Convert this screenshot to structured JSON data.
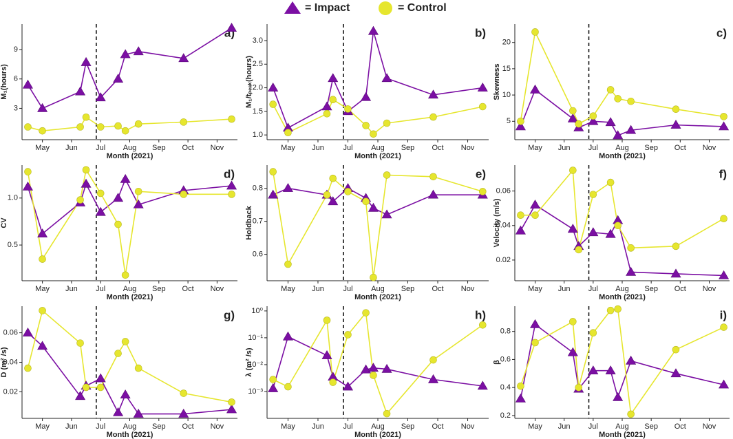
{
  "chart_data": [
    {
      "type": "line",
      "panel": "a)",
      "ylabel": "M₁(hours)",
      "xlabel": "Month (2021)",
      "x": [
        4.5,
        5.0,
        6.3,
        6.5,
        7.0,
        7.6,
        7.85,
        8.3,
        9.85,
        11.5
      ],
      "xlim": [
        4.3,
        11.7
      ],
      "xticks": [
        {
          "value": 5,
          "label": "May"
        },
        {
          "value": 6,
          "label": "Jun"
        },
        {
          "value": 7,
          "label": "Jul"
        },
        {
          "value": 8,
          "label": "Aug"
        },
        {
          "value": 9,
          "label": "Sep"
        },
        {
          "value": 10,
          "label": "Oct"
        },
        {
          "value": 11,
          "label": "Nov"
        }
      ],
      "vline": 6.85,
      "ylim": [
        -0.2,
        11.6
      ],
      "yticks": [
        3,
        6,
        9
      ],
      "series": [
        {
          "name": "= Impact",
          "color": "#7b0fa3",
          "marker": "triangle",
          "values": [
            5.4,
            3.0,
            4.7,
            7.7,
            4.1,
            6.0,
            8.5,
            8.8,
            8.1,
            11.2
          ]
        },
        {
          "name": "= Control",
          "color": "#e6e62e",
          "marker": "circle",
          "values": [
            1.1,
            0.7,
            1.1,
            2.1,
            1.1,
            1.2,
            0.7,
            1.4,
            1.6,
            1.9
          ]
        }
      ]
    },
    {
      "type": "line",
      "panel": "b)",
      "ylabel": "M₁/tₚₑₐₖ(hours)",
      "xlabel": "Month (2021)",
      "x": [
        4.5,
        5.0,
        6.3,
        6.5,
        7.0,
        7.6,
        7.85,
        8.3,
        9.85,
        11.5
      ],
      "xlim": [
        4.3,
        11.7
      ],
      "xticks": [
        {
          "value": 5,
          "label": "May"
        },
        {
          "value": 6,
          "label": "Jun"
        },
        {
          "value": 7,
          "label": "Jul"
        },
        {
          "value": 8,
          "label": "Aug"
        },
        {
          "value": 9,
          "label": "Sep"
        },
        {
          "value": 10,
          "label": "Oct"
        },
        {
          "value": 11,
          "label": "Nov"
        }
      ],
      "vline": 6.85,
      "ylim": [
        0.9,
        3.35
      ],
      "yticks": [
        {
          "value": 1,
          "label": "1.0"
        },
        {
          "value": 1.5,
          "label": "1.5"
        },
        {
          "value": 2,
          "label": "2.0"
        },
        {
          "value": 2.5,
          "label": "2.5"
        },
        {
          "value": 3,
          "label": "3.0"
        }
      ],
      "series": [
        {
          "name": "= Impact",
          "color": "#7b0fa3",
          "marker": "triangle",
          "values": [
            2.0,
            1.15,
            1.6,
            2.2,
            1.5,
            1.8,
            3.2,
            2.2,
            1.85,
            2.0
          ]
        },
        {
          "name": "= Control",
          "color": "#e6e62e",
          "marker": "circle",
          "values": [
            1.65,
            1.05,
            1.45,
            1.75,
            1.55,
            1.2,
            1.02,
            1.25,
            1.38,
            1.6
          ]
        }
      ]
    },
    {
      "type": "line",
      "panel": "c)",
      "ylabel": "Skewness",
      "xlabel": "Month (2021)",
      "x": [
        4.5,
        5.0,
        6.3,
        6.5,
        7.0,
        7.6,
        7.85,
        8.3,
        9.85,
        11.5
      ],
      "xlim": [
        4.3,
        11.7
      ],
      "xticks": [
        {
          "value": 5,
          "label": "May"
        },
        {
          "value": 6,
          "label": "Jun"
        },
        {
          "value": 7,
          "label": "Jul"
        },
        {
          "value": 8,
          "label": "Aug"
        },
        {
          "value": 9,
          "label": "Sep"
        },
        {
          "value": 10,
          "label": "Oct"
        },
        {
          "value": 11,
          "label": "Nov"
        }
      ],
      "vline": 6.85,
      "ylim": [
        1.5,
        23.5
      ],
      "yticks": [
        5,
        10,
        15,
        20
      ],
      "series": [
        {
          "name": "= Impact",
          "color": "#7b0fa3",
          "marker": "triangle",
          "values": [
            4,
            11,
            5.5,
            3.8,
            5,
            4.8,
            2.3,
            3.3,
            4.3,
            4
          ]
        },
        {
          "name": "= Control",
          "color": "#e6e62e",
          "marker": "circle",
          "values": [
            5,
            22,
            7,
            4.5,
            6,
            11,
            9.3,
            8.8,
            7.3,
            5.9
          ]
        }
      ]
    },
    {
      "type": "line",
      "panel": "d)",
      "ylabel": "CV",
      "xlabel": "Month (2021)",
      "x": [
        4.5,
        5.0,
        6.3,
        6.5,
        7.0,
        7.6,
        7.85,
        8.3,
        9.85,
        11.5
      ],
      "xlim": [
        4.3,
        11.7
      ],
      "xticks": [
        {
          "value": 5,
          "label": "May"
        },
        {
          "value": 6,
          "label": "Jun"
        },
        {
          "value": 7,
          "label": "Jul"
        },
        {
          "value": 8,
          "label": "Aug"
        },
        {
          "value": 9,
          "label": "Sep"
        },
        {
          "value": 10,
          "label": "Oct"
        },
        {
          "value": 11,
          "label": "Nov"
        }
      ],
      "vline": 6.85,
      "ylim": [
        0.12,
        1.35
      ],
      "yticks": [
        0.5,
        {
          "value": 1,
          "label": "1.0"
        }
      ],
      "series": [
        {
          "name": "= Impact",
          "color": "#7b0fa3",
          "marker": "triangle",
          "values": [
            1.12,
            0.62,
            0.95,
            1.15,
            0.85,
            1.0,
            1.2,
            0.93,
            1.08,
            1.13
          ]
        },
        {
          "name": "= Control",
          "color": "#e6e62e",
          "marker": "circle",
          "values": [
            1.28,
            0.35,
            0.98,
            1.3,
            1.05,
            0.72,
            0.18,
            1.07,
            1.04,
            1.04
          ]
        }
      ]
    },
    {
      "type": "line",
      "panel": "e)",
      "ylabel": "Holdback",
      "xlabel": "Month (2021)",
      "x": [
        4.5,
        5.0,
        6.3,
        6.5,
        7.0,
        7.6,
        7.85,
        8.3,
        9.85,
        11.5
      ],
      "xlim": [
        4.3,
        11.7
      ],
      "xticks": [
        {
          "value": 5,
          "label": "May"
        },
        {
          "value": 6,
          "label": "Jun"
        },
        {
          "value": 7,
          "label": "Jul"
        },
        {
          "value": 8,
          "label": "Aug"
        },
        {
          "value": 9,
          "label": "Sep"
        },
        {
          "value": 10,
          "label": "Oct"
        },
        {
          "value": 11,
          "label": "Nov"
        }
      ],
      "vline": 6.85,
      "ylim": [
        0.52,
        0.87
      ],
      "yticks": [
        0.6,
        0.7,
        0.8
      ],
      "series": [
        {
          "name": "= Impact",
          "color": "#7b0fa3",
          "marker": "triangle",
          "values": [
            0.78,
            0.8,
            0.78,
            0.76,
            0.8,
            0.77,
            0.74,
            0.72,
            0.78,
            0.78
          ]
        },
        {
          "name": "= Control",
          "color": "#e6e62e",
          "marker": "circle",
          "values": [
            0.85,
            0.57,
            0.78,
            0.83,
            0.79,
            0.76,
            0.53,
            0.84,
            0.835,
            0.79
          ]
        }
      ]
    },
    {
      "type": "line",
      "panel": "f)",
      "ylabel": "Velocity (m/s)",
      "xlabel": "Month (2021)",
      "x": [
        4.5,
        5.0,
        6.3,
        6.5,
        7.0,
        7.6,
        7.85,
        8.3,
        9.85,
        11.5
      ],
      "xlim": [
        4.3,
        11.7
      ],
      "xticks": [
        {
          "value": 5,
          "label": "May"
        },
        {
          "value": 6,
          "label": "Jun"
        },
        {
          "value": 7,
          "label": "Jul"
        },
        {
          "value": 8,
          "label": "Aug"
        },
        {
          "value": 9,
          "label": "Sep"
        },
        {
          "value": 10,
          "label": "Oct"
        },
        {
          "value": 11,
          "label": "Nov"
        }
      ],
      "vline": 6.85,
      "ylim": [
        0.008,
        0.075
      ],
      "yticks": [
        0.02,
        0.04,
        0.06
      ],
      "series": [
        {
          "name": "= Impact",
          "color": "#7b0fa3",
          "marker": "triangle",
          "values": [
            0.037,
            0.052,
            0.038,
            0.028,
            0.036,
            0.035,
            0.043,
            0.013,
            0.012,
            0.011
          ]
        },
        {
          "name": "= Control",
          "color": "#e6e62e",
          "marker": "circle",
          "values": [
            0.046,
            0.046,
            0.072,
            0.026,
            0.058,
            0.065,
            0.04,
            0.027,
            0.028,
            0.044
          ]
        }
      ]
    },
    {
      "type": "line",
      "panel": "g)",
      "ylabel": "D (m² /s)",
      "xlabel": "Month (2021)",
      "x": [
        4.5,
        5.0,
        6.3,
        6.5,
        7.0,
        7.6,
        7.85,
        8.3,
        9.85,
        11.5
      ],
      "xlim": [
        4.3,
        11.7
      ],
      "xticks": [
        {
          "value": 5,
          "label": "May"
        },
        {
          "value": 6,
          "label": "Jun"
        },
        {
          "value": 7,
          "label": "Jul"
        },
        {
          "value": 8,
          "label": "Aug"
        },
        {
          "value": 9,
          "label": "Sep"
        },
        {
          "value": 10,
          "label": "Oct"
        },
        {
          "value": 11,
          "label": "Nov"
        }
      ],
      "vline": 6.85,
      "ylim": [
        0.002,
        0.078
      ],
      "yticks": [
        0.02,
        0.04,
        0.06
      ],
      "series": [
        {
          "name": "= Impact",
          "color": "#7b0fa3",
          "marker": "triangle",
          "values": [
            0.06,
            0.051,
            0.017,
            0.024,
            0.029,
            0.006,
            0.018,
            0.005,
            0.005,
            0.008
          ]
        },
        {
          "name": "= Control",
          "color": "#e6e62e",
          "marker": "circle",
          "values": [
            0.036,
            0.075,
            0.053,
            0.023,
            0.023,
            0.046,
            0.054,
            0.036,
            0.019,
            0.013
          ]
        }
      ]
    },
    {
      "type": "line",
      "panel": "h)",
      "ylabel": "λ (m² /s)",
      "xlabel": "Month (2021)",
      "log_y": true,
      "x": [
        4.5,
        5.0,
        6.3,
        6.5,
        7.0,
        7.6,
        7.85,
        8.3,
        9.85,
        11.5
      ],
      "xlim": [
        4.3,
        11.7
      ],
      "xticks": [
        {
          "value": 5,
          "label": "May"
        },
        {
          "value": 6,
          "label": "Jun"
        },
        {
          "value": 7,
          "label": "Jul"
        },
        {
          "value": 8,
          "label": "Aug"
        },
        {
          "value": 9,
          "label": "Sep"
        },
        {
          "value": 10,
          "label": "Oct"
        },
        {
          "value": 11,
          "label": "Nov"
        }
      ],
      "vline": 6.85,
      "ylim": [
        0.0001,
        1.5
      ],
      "yticks": [
        {
          "value": 0.001,
          "label": "10⁻³"
        },
        {
          "value": 0.01,
          "label": "10⁻²"
        },
        {
          "value": 0.1,
          "label": "10⁻¹"
        },
        {
          "value": 1,
          "label": "10⁰"
        }
      ],
      "series": [
        {
          "name": "= Impact",
          "color": "#7b0fa3",
          "marker": "triangle",
          "values": [
            0.0013,
            0.11,
            0.022,
            0.0035,
            0.0015,
            0.0065,
            0.0075,
            0.0068,
            0.0028,
            0.0016
          ]
        },
        {
          "name": "= Control",
          "color": "#e6e62e",
          "marker": "circle",
          "values": [
            0.0028,
            0.0015,
            0.45,
            0.0022,
            0.13,
            0.85,
            0.004,
            0.00015,
            0.015,
            0.3
          ]
        }
      ]
    },
    {
      "type": "line",
      "panel": "i)",
      "ylabel": "β",
      "xlabel": "Month (2021)",
      "x": [
        4.5,
        5.0,
        6.3,
        6.5,
        7.0,
        7.6,
        7.85,
        8.3,
        9.85,
        11.5
      ],
      "xlim": [
        4.3,
        11.7
      ],
      "xticks": [
        {
          "value": 5,
          "label": "May"
        },
        {
          "value": 6,
          "label": "Jun"
        },
        {
          "value": 7,
          "label": "Jul"
        },
        {
          "value": 8,
          "label": "Aug"
        },
        {
          "value": 9,
          "label": "Sep"
        },
        {
          "value": 10,
          "label": "Oct"
        },
        {
          "value": 11,
          "label": "Nov"
        }
      ],
      "vline": 6.85,
      "ylim": [
        0.18,
        0.98
      ],
      "yticks": [
        0.2,
        0.4,
        0.6,
        0.8
      ],
      "series": [
        {
          "name": "= Impact",
          "color": "#7b0fa3",
          "marker": "triangle",
          "values": [
            0.32,
            0.85,
            0.65,
            0.39,
            0.52,
            0.52,
            0.33,
            0.59,
            0.5,
            0.42
          ]
        },
        {
          "name": "= Control",
          "color": "#e6e62e",
          "marker": "circle",
          "values": [
            0.41,
            0.72,
            0.87,
            0.4,
            0.79,
            0.95,
            0.96,
            0.21,
            0.67,
            0.83
          ]
        }
      ]
    }
  ]
}
